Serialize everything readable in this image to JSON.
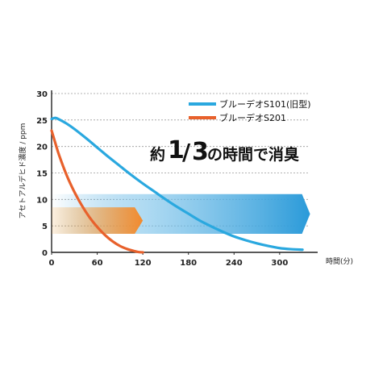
{
  "chart_data": {
    "type": "line",
    "xlabel": "時間(分)",
    "ylabel": "アセトアルデヒド濃度 / ppm",
    "xlim": [
      0,
      350
    ],
    "ylim": [
      0,
      30
    ],
    "x_ticks": [
      "0",
      "60",
      "120",
      "180",
      "240",
      "300"
    ],
    "y_ticks": [
      "0",
      "5",
      "10",
      "15",
      "20",
      "25",
      "30"
    ],
    "grid": "horizontal-dashed",
    "legend_position": "top-right",
    "series": [
      {
        "name": "ブルーデオS101(旧型)",
        "color": "#2aa8df",
        "x": [
          0,
          5,
          10,
          20,
          30,
          45,
          60,
          75,
          90,
          105,
          120,
          135,
          150,
          165,
          180,
          195,
          210,
          225,
          240,
          255,
          270,
          285,
          300,
          315,
          330
        ],
        "y": [
          25.2,
          25.4,
          25.1,
          24.3,
          23.3,
          21.6,
          19.8,
          18.0,
          16.3,
          14.6,
          13.0,
          11.5,
          10.0,
          8.6,
          7.3,
          6.0,
          4.9,
          3.9,
          3.0,
          2.3,
          1.7,
          1.2,
          0.8,
          0.6,
          0.5
        ]
      },
      {
        "name": "ブルーデオS201",
        "color": "#e8612c",
        "x": [
          0,
          5,
          10,
          20,
          30,
          40,
          50,
          60,
          70,
          80,
          90,
          100,
          110,
          115,
          120
        ],
        "y": [
          23.0,
          20.6,
          18.3,
          14.5,
          11.4,
          8.8,
          6.6,
          4.8,
          3.3,
          2.1,
          1.2,
          0.6,
          0.2,
          0.05,
          0
        ]
      }
    ],
    "annotation": {
      "prefix": "約",
      "num": "1",
      "slash": "/",
      "den": "3",
      "suffix": "の時間で消臭"
    },
    "bands": [
      {
        "series": "ブルーデオS201",
        "color": "#f28a2e",
        "x_end": 120,
        "y_low": 3.5,
        "y_high": 8.5
      },
      {
        "series": "ブルーデオS101(旧型)",
        "color": "#2a9ad9",
        "x_end": 340,
        "y_low": 3.5,
        "y_high": 11
      }
    ]
  }
}
